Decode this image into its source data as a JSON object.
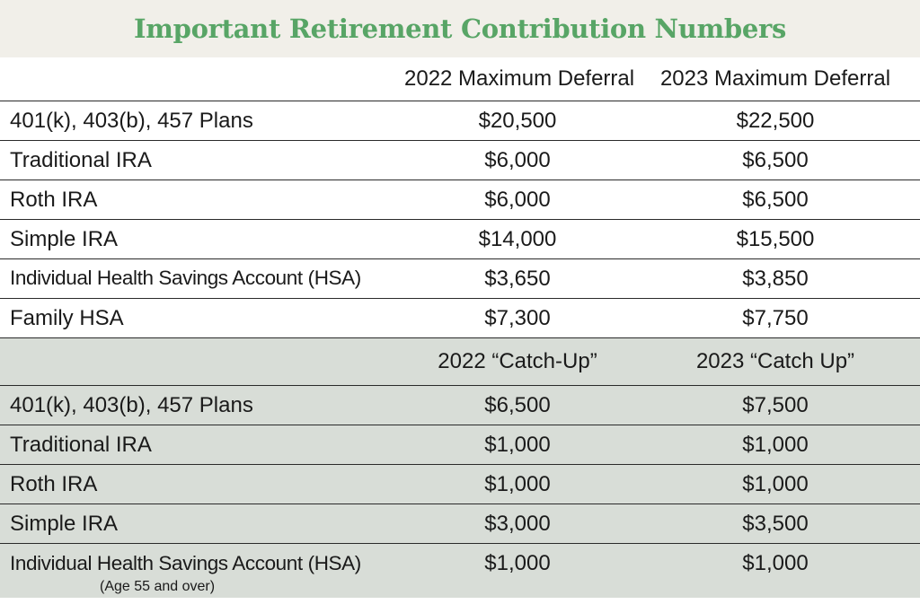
{
  "title": "Important Retirement Contribution Numbers",
  "section1": {
    "headers": [
      "",
      "2022 Maximum Deferral",
      "2023 Maximum Deferral"
    ],
    "rows": [
      {
        "label": "401(k), 403(b), 457 Plans",
        "y2022": "$20,500",
        "y2023": "$22,500"
      },
      {
        "label": "Traditional IRA",
        "y2022": "$6,000",
        "y2023": "$6,500"
      },
      {
        "label": "Roth IRA",
        "y2022": "$6,000",
        "y2023": "$6,500"
      },
      {
        "label": "Simple IRA",
        "y2022": "$14,000",
        "y2023": "$15,500"
      },
      {
        "label": "Individual Health Savings Account (HSA)",
        "y2022": "$3,650",
        "y2023": "$3,850"
      },
      {
        "label": "Family HSA",
        "y2022": "$7,300",
        "y2023": "$7,750"
      }
    ]
  },
  "section2": {
    "headers": [
      "",
      "2022 “Catch-Up”",
      "2023 “Catch Up”"
    ],
    "rows": [
      {
        "label": "401(k), 403(b), 457 Plans",
        "y2022": "$6,500",
        "y2023": "$7,500"
      },
      {
        "label": "Traditional IRA",
        "y2022": "$1,000",
        "y2023": "$1,000"
      },
      {
        "label": "Roth IRA",
        "y2022": "$1,000",
        "y2023": "$1,000"
      },
      {
        "label": "Simple IRA",
        "y2022": "$3,000",
        "y2023": "$3,500"
      },
      {
        "label": "Individual Health Savings Account (HSA)",
        "y2022": "$1,000",
        "y2023": "$1,000",
        "note": "(Age 55 and over)"
      }
    ]
  },
  "colors": {
    "title": "#58a566",
    "title_bg": "#f1efe9",
    "section2_bg": "#d8ddd7"
  }
}
